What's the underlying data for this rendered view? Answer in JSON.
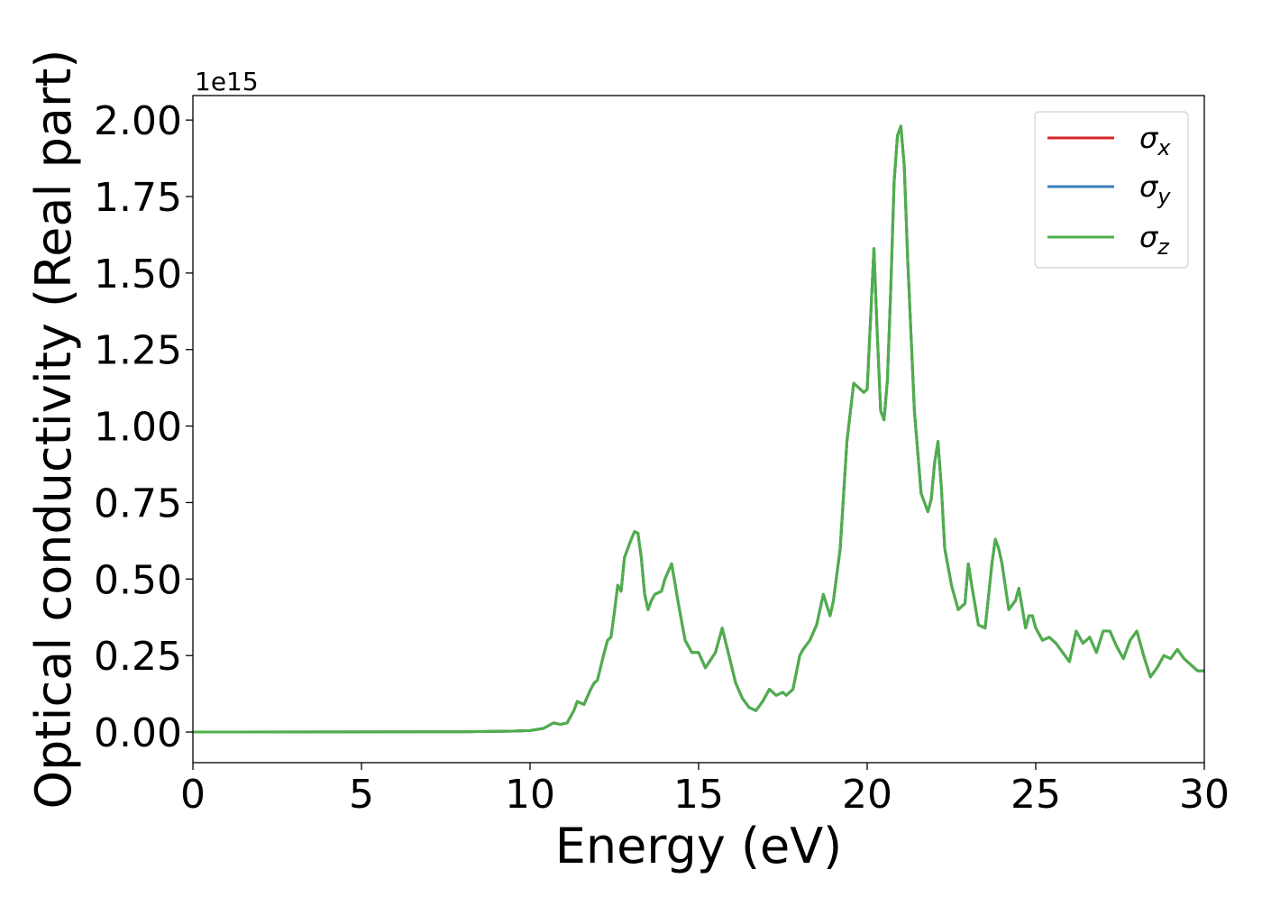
{
  "chart_data": {
    "type": "line",
    "xlabel": "Energy (eV)",
    "ylabel": "Optical conductivity (Real part)",
    "y_offset_label": "1e15",
    "y_scale_factor": 1000000000000000.0,
    "xlim": [
      0,
      30
    ],
    "ylim": [
      -0.1,
      2.08
    ],
    "x_ticks": [
      0,
      5,
      10,
      15,
      20,
      25,
      30
    ],
    "x_tick_labels": [
      "0",
      "5",
      "10",
      "15",
      "20",
      "25",
      "30"
    ],
    "y_ticks": [
      0,
      0.25,
      0.5,
      0.75,
      1.0,
      1.25,
      1.5,
      1.75,
      2.0
    ],
    "y_tick_labels": [
      "0.00",
      "0.25",
      "0.50",
      "0.75",
      "1.00",
      "1.25",
      "1.50",
      "1.75",
      "2.00"
    ],
    "grid": false,
    "legend_position": "top-right",
    "x": [
      0,
      8,
      9.5,
      10,
      10.4,
      10.7,
      10.9,
      11.1,
      11.3,
      11.4,
      11.6,
      11.8,
      11.9,
      12.0,
      12.2,
      12.3,
      12.4,
      12.5,
      12.6,
      12.7,
      12.8,
      13.0,
      13.1,
      13.2,
      13.3,
      13.4,
      13.5,
      13.6,
      13.7,
      13.9,
      14.0,
      14.2,
      14.4,
      14.6,
      14.8,
      15.0,
      15.2,
      15.5,
      15.7,
      15.9,
      16.1,
      16.3,
      16.5,
      16.7,
      16.9,
      17.1,
      17.3,
      17.5,
      17.6,
      17.8,
      18.0,
      18.1,
      18.3,
      18.5,
      18.7,
      18.9,
      19.0,
      19.2,
      19.4,
      19.6,
      19.8,
      19.9,
      20.0,
      20.1,
      20.2,
      20.3,
      20.4,
      20.5,
      20.6,
      20.7,
      20.8,
      20.9,
      21.0,
      21.1,
      21.2,
      21.4,
      21.6,
      21.8,
      21.9,
      22.0,
      22.1,
      22.2,
      22.3,
      22.5,
      22.7,
      22.9,
      23.0,
      23.1,
      23.3,
      23.5,
      23.7,
      23.8,
      23.9,
      24.0,
      24.2,
      24.4,
      24.5,
      24.7,
      24.8,
      24.9,
      25.0,
      25.2,
      25.4,
      25.6,
      25.8,
      26.0,
      26.2,
      26.4,
      26.6,
      26.8,
      27.0,
      27.2,
      27.4,
      27.6,
      27.8,
      28.0,
      28.2,
      28.4,
      28.6,
      28.8,
      29.0,
      29.2,
      29.4,
      29.6,
      29.8,
      30.0
    ],
    "series": [
      {
        "name": "σ_x",
        "color": "#d62728",
        "values": [
          0,
          0.001,
          0.003,
          0.005,
          0.012,
          0.03,
          0.025,
          0.03,
          0.07,
          0.1,
          0.09,
          0.14,
          0.16,
          0.17,
          0.26,
          0.3,
          0.31,
          0.39,
          0.48,
          0.46,
          0.57,
          0.63,
          0.655,
          0.65,
          0.57,
          0.45,
          0.4,
          0.43,
          0.45,
          0.46,
          0.5,
          0.55,
          0.42,
          0.3,
          0.26,
          0.26,
          0.21,
          0.26,
          0.34,
          0.25,
          0.16,
          0.11,
          0.08,
          0.07,
          0.1,
          0.14,
          0.12,
          0.13,
          0.12,
          0.14,
          0.25,
          0.27,
          0.3,
          0.35,
          0.45,
          0.38,
          0.43,
          0.6,
          0.95,
          1.14,
          1.12,
          1.11,
          1.12,
          1.35,
          1.58,
          1.3,
          1.05,
          1.02,
          1.15,
          1.45,
          1.8,
          1.95,
          1.98,
          1.85,
          1.55,
          1.05,
          0.78,
          0.72,
          0.76,
          0.88,
          0.95,
          0.8,
          0.6,
          0.48,
          0.4,
          0.42,
          0.55,
          0.48,
          0.35,
          0.34,
          0.55,
          0.63,
          0.6,
          0.55,
          0.4,
          0.43,
          0.47,
          0.34,
          0.38,
          0.38,
          0.34,
          0.3,
          0.31,
          0.29,
          0.26,
          0.23,
          0.33,
          0.29,
          0.31,
          0.26,
          0.33,
          0.33,
          0.28,
          0.24,
          0.3,
          0.33,
          0.25,
          0.18,
          0.21,
          0.25,
          0.24,
          0.27,
          0.24,
          0.22,
          0.2,
          0.2
        ]
      },
      {
        "name": "σ_y",
        "color": "#377eb8",
        "values": [
          0,
          0.001,
          0.003,
          0.005,
          0.012,
          0.03,
          0.025,
          0.03,
          0.07,
          0.1,
          0.09,
          0.14,
          0.16,
          0.17,
          0.26,
          0.3,
          0.31,
          0.39,
          0.48,
          0.46,
          0.57,
          0.63,
          0.655,
          0.65,
          0.57,
          0.45,
          0.4,
          0.43,
          0.45,
          0.46,
          0.5,
          0.55,
          0.42,
          0.3,
          0.26,
          0.26,
          0.21,
          0.26,
          0.34,
          0.25,
          0.16,
          0.11,
          0.08,
          0.07,
          0.1,
          0.14,
          0.12,
          0.13,
          0.12,
          0.14,
          0.25,
          0.27,
          0.3,
          0.35,
          0.45,
          0.38,
          0.43,
          0.6,
          0.95,
          1.14,
          1.12,
          1.11,
          1.12,
          1.35,
          1.58,
          1.3,
          1.05,
          1.02,
          1.15,
          1.45,
          1.8,
          1.95,
          1.98,
          1.85,
          1.55,
          1.05,
          0.78,
          0.72,
          0.76,
          0.88,
          0.95,
          0.8,
          0.6,
          0.48,
          0.4,
          0.42,
          0.55,
          0.48,
          0.35,
          0.34,
          0.55,
          0.63,
          0.6,
          0.55,
          0.4,
          0.43,
          0.47,
          0.34,
          0.38,
          0.38,
          0.34,
          0.3,
          0.31,
          0.29,
          0.26,
          0.23,
          0.33,
          0.29,
          0.31,
          0.26,
          0.33,
          0.33,
          0.28,
          0.24,
          0.3,
          0.33,
          0.25,
          0.18,
          0.21,
          0.25,
          0.24,
          0.27,
          0.24,
          0.22,
          0.2,
          0.2
        ]
      },
      {
        "name": "σ_z",
        "color": "#4daf4a",
        "values": [
          0,
          0.001,
          0.003,
          0.005,
          0.012,
          0.03,
          0.025,
          0.03,
          0.07,
          0.1,
          0.09,
          0.14,
          0.16,
          0.17,
          0.26,
          0.3,
          0.31,
          0.39,
          0.48,
          0.46,
          0.57,
          0.63,
          0.655,
          0.65,
          0.57,
          0.45,
          0.4,
          0.43,
          0.45,
          0.46,
          0.5,
          0.55,
          0.42,
          0.3,
          0.26,
          0.26,
          0.21,
          0.26,
          0.34,
          0.25,
          0.16,
          0.11,
          0.08,
          0.07,
          0.1,
          0.14,
          0.12,
          0.13,
          0.12,
          0.14,
          0.25,
          0.27,
          0.3,
          0.35,
          0.45,
          0.38,
          0.43,
          0.6,
          0.95,
          1.14,
          1.12,
          1.11,
          1.12,
          1.35,
          1.58,
          1.3,
          1.05,
          1.02,
          1.15,
          1.45,
          1.8,
          1.95,
          1.98,
          1.85,
          1.55,
          1.05,
          0.78,
          0.72,
          0.76,
          0.88,
          0.95,
          0.8,
          0.6,
          0.48,
          0.4,
          0.42,
          0.55,
          0.48,
          0.35,
          0.34,
          0.55,
          0.63,
          0.6,
          0.55,
          0.4,
          0.43,
          0.47,
          0.34,
          0.38,
          0.38,
          0.34,
          0.3,
          0.31,
          0.29,
          0.26,
          0.23,
          0.33,
          0.29,
          0.31,
          0.26,
          0.33,
          0.33,
          0.28,
          0.24,
          0.3,
          0.33,
          0.25,
          0.18,
          0.21,
          0.25,
          0.24,
          0.27,
          0.24,
          0.22,
          0.2,
          0.2
        ]
      }
    ],
    "legend": [
      {
        "symbol": "σ",
        "subscript": "x"
      },
      {
        "symbol": "σ",
        "subscript": "y"
      },
      {
        "symbol": "σ",
        "subscript": "z"
      }
    ]
  }
}
